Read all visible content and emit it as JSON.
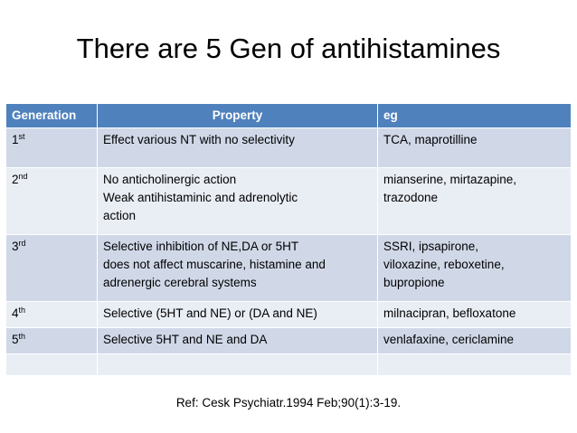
{
  "title": "There are 5 Gen of antihistamines",
  "table": {
    "header": [
      "Generation",
      "Property",
      "eg"
    ],
    "rows": [
      {
        "gen": {
          "text": "1",
          "sup": "st"
        },
        "property": [
          "Effect various NT with no selectivity"
        ],
        "eg": [
          "TCA, maprotilline"
        ]
      },
      {
        "gen": {
          "text": "2",
          "sup": "nd"
        },
        "property": [
          "No anticholinergic action",
          "Weak antihistaminic and adrenolytic",
          "action"
        ],
        "eg": [
          "mianserine, mirtazapine,",
          "trazodone"
        ]
      },
      {
        "gen": {
          "text": "3",
          "sup": "rd"
        },
        "property": [
          "Selective inhibition of NE,DA or 5HT",
          "does not affect muscarine, histamine and",
          "adrenergic cerebral systems"
        ],
        "eg": [
          "SSRI, ipsapirone,",
          "viloxazine, reboxetine,",
          "bupropione"
        ]
      },
      {
        "gen": {
          "text": "4",
          "sup": "th"
        },
        "property": [
          "Selective (5HT and NE) or (DA and NE)"
        ],
        "eg": [
          "milnacipran, befloxatone"
        ]
      },
      {
        "gen": {
          "text": "5",
          "sup": "th"
        },
        "property": [
          "Selective 5HT and NE and DA"
        ],
        "eg": [
          "venlafaxine, cericlamine"
        ]
      }
    ]
  },
  "reference": "Ref: Cesk Psychiatr.1994 Feb;90(1):3-19."
}
